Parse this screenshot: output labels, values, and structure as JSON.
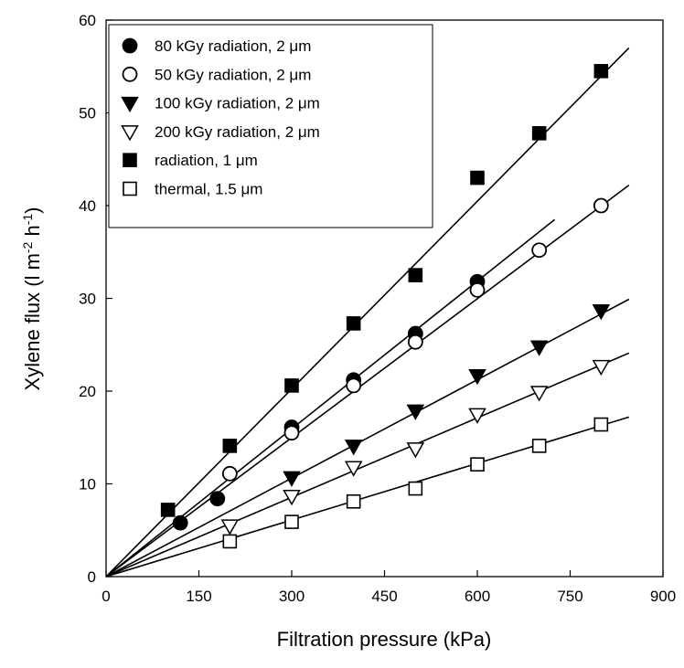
{
  "chart_data": {
    "type": "scatter",
    "xlabel": "Filtration pressure (kPa)",
    "ylabel": {
      "prefix": "Xylene flux (l m",
      "sup1": "-2",
      "middle": " h",
      "sup2": "-1",
      "suffix": ")"
    },
    "xlim": [
      0,
      900
    ],
    "ylim": [
      0,
      60
    ],
    "x_ticks": [
      0,
      150,
      300,
      450,
      600,
      750,
      900
    ],
    "y_ticks": [
      0,
      10,
      20,
      30,
      40,
      50,
      60
    ],
    "grid": false,
    "legend_position": "top-left",
    "series": [
      {
        "name": "80 kGy radiation, 2 μm",
        "marker": "circle-filled",
        "x": [
          120,
          180,
          300,
          400,
          500,
          600
        ],
        "y": [
          5.8,
          8.4,
          16.1,
          21.2,
          26.2,
          31.8
        ],
        "fit_end": [
          725,
          38.5
        ]
      },
      {
        "name": "50 kGy radiation, 2 μm",
        "marker": "circle-open",
        "x": [
          200,
          300,
          400,
          500,
          600,
          700,
          800
        ],
        "y": [
          11.1,
          15.5,
          20.6,
          25.3,
          30.9,
          35.2,
          40.0
        ],
        "fit_end": [
          845,
          42.2
        ]
      },
      {
        "name": "100 kGy radiation, 2 μm",
        "marker": "triangle-down-filled",
        "x": [
          300,
          400,
          500,
          600,
          700,
          800
        ],
        "y": [
          10.7,
          14.1,
          17.9,
          21.7,
          24.8,
          28.7
        ],
        "fit_end": [
          845,
          29.9
        ]
      },
      {
        "name": "200 kGy radiation, 2 μm",
        "marker": "triangle-down-open",
        "x": [
          200,
          300,
          400,
          500,
          600,
          700,
          800
        ],
        "y": [
          5.5,
          8.7,
          11.8,
          13.8,
          17.5,
          19.9,
          22.7
        ],
        "fit_end": [
          845,
          24.1
        ]
      },
      {
        "name": "radiation, 1 μm",
        "marker": "square-filled",
        "x": [
          100,
          200,
          300,
          400,
          500,
          600,
          700,
          800
        ],
        "y": [
          7.2,
          14.1,
          20.6,
          27.3,
          32.5,
          43.0,
          47.8,
          54.5
        ],
        "fit_end": [
          845,
          57.0
        ]
      },
      {
        "name": "thermal, 1.5 μm",
        "marker": "square-open",
        "x": [
          200,
          300,
          400,
          500,
          600,
          700,
          800
        ],
        "y": [
          3.8,
          5.9,
          8.1,
          9.5,
          12.1,
          14.1,
          16.4
        ],
        "fit_end": [
          845,
          17.2
        ]
      }
    ]
  }
}
